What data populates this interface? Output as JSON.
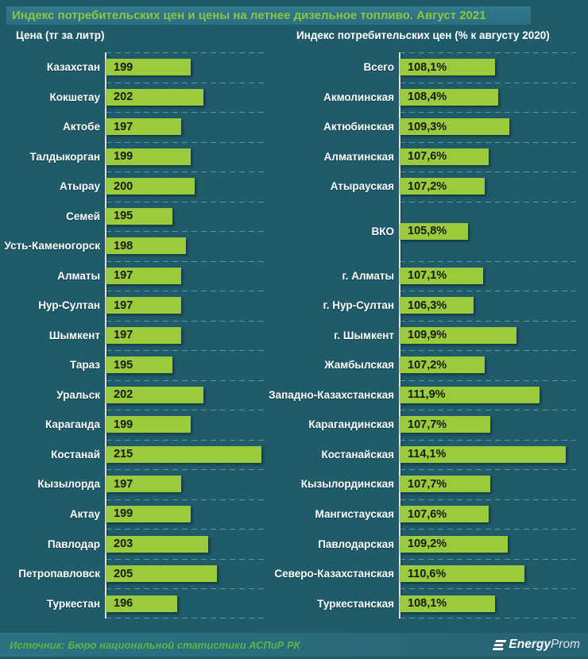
{
  "title": "Индекс потребительских цен и цены на летнее дизельное топливо. Август 2021",
  "source": "Источник: Бюро национальной статистики АСПиР РК",
  "logo": {
    "icon": "energyprom-logo-icon",
    "bold": "Energy",
    "light": "Prom"
  },
  "colors": {
    "background": "#205b69",
    "title_band": "#2e7588",
    "title_text": "#8dc63f",
    "bar_fill": "#9cca3d",
    "bar_value_text": "#151b15",
    "category_text": "#ffffff",
    "gridline": "#82cdcd",
    "axis_line": "#dde6e7",
    "footer_band": "#2a6d7d",
    "source_text": "#53bb45"
  },
  "chart_data": [
    {
      "type": "bar",
      "orientation": "horizontal",
      "title": "Цена (тг за литр)",
      "xlabel": "тг за литр",
      "xlim": [
        180,
        216
      ],
      "grid": "dashed-horizontal-row-separators",
      "categories": [
        "Казахстан",
        "Кокшетау",
        "Актобе",
        "Талдыкорган",
        "Атырау",
        "Семей",
        "Усть-Каменогорск",
        "Алматы",
        "Нур-Султан",
        "Шымкент",
        "Тараз",
        "Уральск",
        "Караганда",
        "Костанай",
        "Кызылорда",
        "Актау",
        "Павлодар",
        "Петропавловск",
        "Туркестан"
      ],
      "values": [
        199,
        202,
        197,
        199,
        200,
        195,
        198,
        197,
        197,
        197,
        195,
        202,
        199,
        215,
        197,
        199,
        203,
        205,
        196
      ],
      "labels": [
        "199",
        "202",
        "197",
        "199",
        "200",
        "195",
        "198",
        "197",
        "197",
        "197",
        "195",
        "202",
        "199",
        "215",
        "197",
        "199",
        "203",
        "205",
        "196"
      ],
      "tall_row_index": -1
    },
    {
      "type": "bar",
      "orientation": "horizontal",
      "title": "Индекс потребительских цен (% к августу 2020)",
      "xlabel": "% к августу 2020",
      "xlim": [
        100,
        115
      ],
      "grid": "dashed-horizontal-row-separators",
      "categories": [
        "Всего",
        "Акмолинская",
        "Актюбинская",
        "Алматинская",
        "Атырауская",
        "ВКО",
        "г. Алматы",
        "г. Нур-Султан",
        "г. Шымкент",
        "Жамбылская",
        "Западно-Казахстанская",
        "Карагандинская",
        "Костанайская",
        "Кызылординская",
        "Мангистауская",
        "Павлодарская",
        "Северо-Казахстанская",
        "Туркестанская"
      ],
      "values": [
        108.1,
        108.4,
        109.3,
        107.6,
        107.2,
        105.8,
        107.1,
        106.3,
        109.9,
        107.2,
        111.9,
        107.7,
        114.1,
        107.7,
        107.6,
        109.2,
        110.6,
        108.1
      ],
      "labels": [
        "108,1%",
        "108,4%",
        "109,3%",
        "107,6%",
        "107,2%",
        "105,8%",
        "107,1%",
        "106,3%",
        "109,9%",
        "107,2%",
        "111,9%",
        "107,7%",
        "114,1%",
        "107,7%",
        "107,6%",
        "109,2%",
        "110,6%",
        "108,1%"
      ],
      "tall_row_index": 5
    }
  ]
}
